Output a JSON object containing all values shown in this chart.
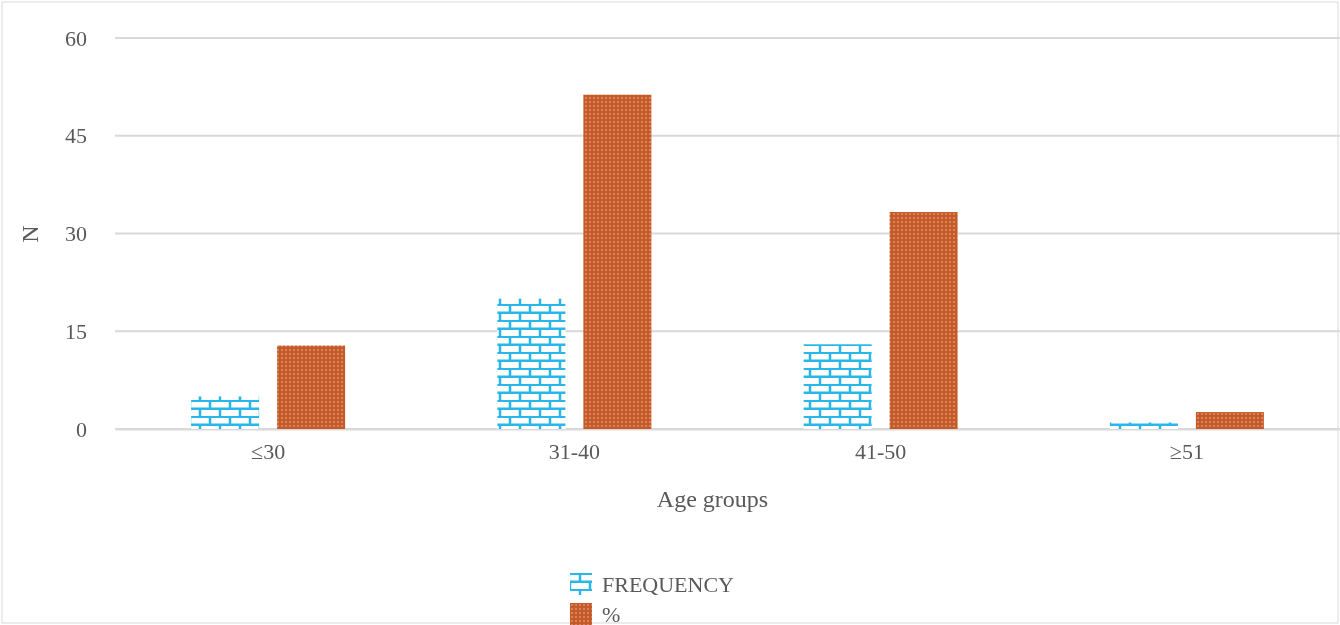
{
  "chart_data": {
    "type": "bar",
    "xlabel": "Age groups",
    "ylabel": "N",
    "categories": [
      "≤30",
      "31-40",
      "41-50",
      "≥51"
    ],
    "series": [
      {
        "name": "FREQUENCY",
        "color": "#29b6e8",
        "values": [
          5,
          20,
          13,
          1
        ]
      },
      {
        "name": "%",
        "color": "#c55a28",
        "values": [
          12.8,
          51.3,
          33.3,
          2.6
        ]
      }
    ],
    "ylim": [
      0,
      60
    ],
    "yticks": [
      0,
      15,
      30,
      45,
      60
    ],
    "grid": "y",
    "legend": "bottom"
  }
}
